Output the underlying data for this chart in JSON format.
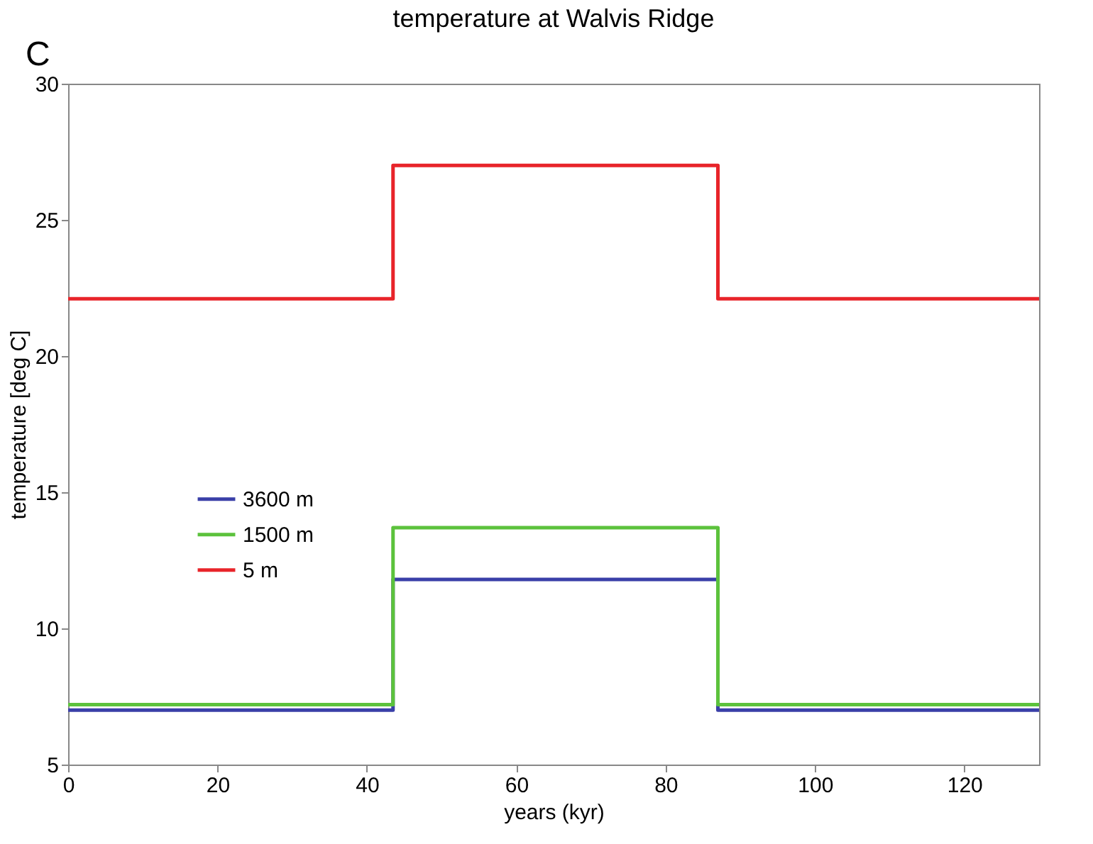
{
  "chart_data": {
    "type": "line",
    "title": "temperature at Walvis Ridge",
    "xlabel": "years (kyr)",
    "ylabel": "temperature [deg C]",
    "annotations": [
      "C"
    ],
    "series": [
      {
        "name": "3600 m",
        "color": "#3a3fa8",
        "x": [
          0,
          43.5,
          43.5,
          87,
          87,
          130
        ],
        "values": [
          7.0,
          7.0,
          11.8,
          11.8,
          7.0,
          7.0
        ]
      },
      {
        "name": "1500 m",
        "color": "#5cc23c",
        "x": [
          0,
          43.5,
          43.5,
          87,
          87,
          130
        ],
        "values": [
          7.2,
          7.2,
          13.7,
          13.7,
          7.2,
          7.2
        ]
      },
      {
        "name": "5 m",
        "color": "#e8242a",
        "x": [
          0,
          43.5,
          43.5,
          87,
          87,
          130
        ],
        "values": [
          22.1,
          22.1,
          27.0,
          27.0,
          22.1,
          22.1
        ]
      }
    ],
    "xlim": [
      0,
      130
    ],
    "xticks": [
      0,
      20,
      40,
      60,
      80,
      100,
      120
    ],
    "ylim": [
      5,
      30
    ],
    "yticks": [
      5,
      10,
      15,
      20,
      25,
      30
    ],
    "grid": false,
    "legend": "left",
    "marker": "none",
    "line_style": "solid"
  }
}
